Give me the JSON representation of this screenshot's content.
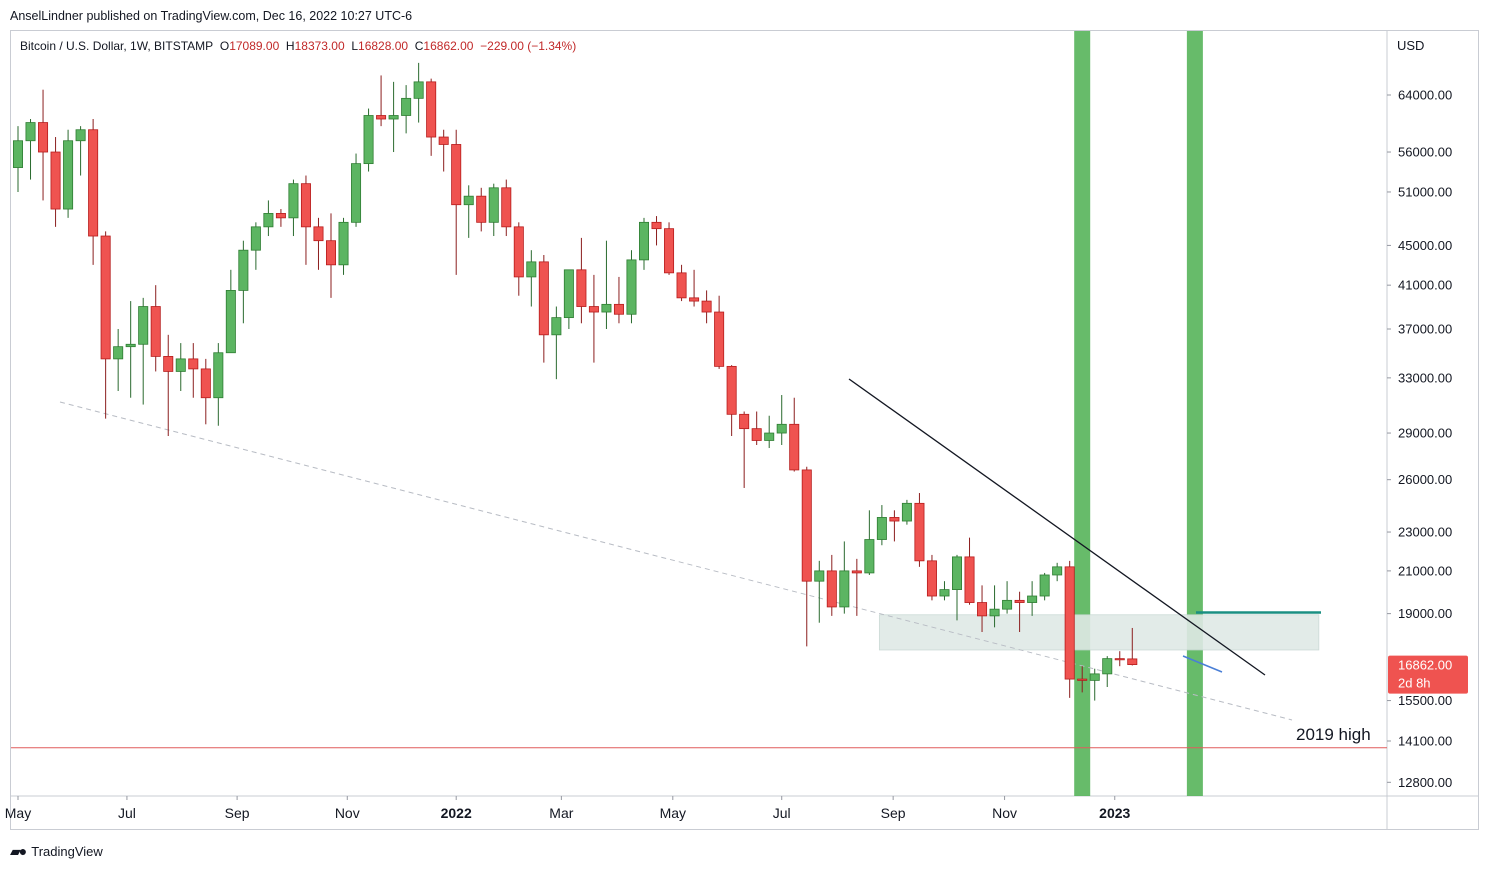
{
  "header": {
    "published": "AnselLindner published on TradingView.com, Dec 16, 2022 10:27 UTC-6"
  },
  "legend": {
    "symbol": "Bitcoin / U.S. Dollar, 1W, BITSTAMP",
    "o_label": "O",
    "o_value": "17089.00",
    "h_label": "H",
    "h_value": "18373.00",
    "l_label": "L",
    "l_value": "16828.00",
    "c_label": "C",
    "c_value": "16862.00",
    "change": "−229.00 (−1.34%)"
  },
  "footer": {
    "brand": "TradingView"
  },
  "colors": {
    "up": "#5cb562",
    "down": "#ef5350",
    "up_border": "#2e7d32",
    "down_border": "#b71c1c",
    "highlight": "#4caf50",
    "zone": "#dfe9e6",
    "support": "#e05c5c",
    "level": "#1a8f82",
    "price_badge": "#ef5350"
  },
  "chart_data": {
    "type": "candlestick",
    "title": "Bitcoin / U.S. Dollar, 1W, BITSTAMP",
    "currency": "USD",
    "scale": "log",
    "ylim": [
      12000,
      78000
    ],
    "y_ticks": [
      "64000.00",
      "56000.00",
      "51000.00",
      "45000.00",
      "41000.00",
      "37000.00",
      "33000.00",
      "29000.00",
      "26000.00",
      "23000.00",
      "21000.00",
      "19000.00",
      "15500.00",
      "14100.00",
      "12800.00"
    ],
    "x_tick_labels": [
      "May",
      "Jul",
      "Sep",
      "Nov",
      "2022",
      "Mar",
      "May",
      "Jul",
      "Sep",
      "Nov",
      "2023"
    ],
    "x_tick_weeks": [
      0,
      8.7,
      17.5,
      26.3,
      35.0,
      43.4,
      52.3,
      61.0,
      69.9,
      78.8,
      87.6
    ],
    "current_price": "16862.00",
    "countdown": "2d 8h",
    "annotation": "2019 high",
    "support_level": 13880,
    "horizontal_level": 19050,
    "support_zone": [
      17450,
      18950
    ],
    "candles": [
      {
        "o": 54000,
        "h": 59500,
        "l": 51000,
        "c": 57500
      },
      {
        "o": 57500,
        "h": 60500,
        "l": 52500,
        "c": 60000
      },
      {
        "o": 60000,
        "h": 64800,
        "l": 50000,
        "c": 56000
      },
      {
        "o": 56000,
        "h": 58000,
        "l": 47000,
        "c": 49000
      },
      {
        "o": 49000,
        "h": 59000,
        "l": 48000,
        "c": 57500
      },
      {
        "o": 57500,
        "h": 59500,
        "l": 53000,
        "c": 59000
      },
      {
        "o": 59000,
        "h": 60500,
        "l": 43000,
        "c": 46000
      },
      {
        "o": 46000,
        "h": 46500,
        "l": 30000,
        "c": 34500
      },
      {
        "o": 34500,
        "h": 37000,
        "l": 32000,
        "c": 35500
      },
      {
        "o": 35500,
        "h": 39500,
        "l": 31500,
        "c": 35700
      },
      {
        "o": 35700,
        "h": 39800,
        "l": 31000,
        "c": 39000
      },
      {
        "o": 39000,
        "h": 41000,
        "l": 33500,
        "c": 34700
      },
      {
        "o": 34700,
        "h": 36500,
        "l": 28800,
        "c": 33500
      },
      {
        "o": 33500,
        "h": 35800,
        "l": 32000,
        "c": 34500
      },
      {
        "o": 34500,
        "h": 35800,
        "l": 31500,
        "c": 33700
      },
      {
        "o": 33700,
        "h": 34500,
        "l": 29600,
        "c": 31500
      },
      {
        "o": 31500,
        "h": 35800,
        "l": 29500,
        "c": 35000
      },
      {
        "o": 35000,
        "h": 42500,
        "l": 35000,
        "c": 40500
      },
      {
        "o": 40500,
        "h": 45500,
        "l": 37500,
        "c": 44500
      },
      {
        "o": 44500,
        "h": 47500,
        "l": 42500,
        "c": 47000
      },
      {
        "o": 47000,
        "h": 50000,
        "l": 46000,
        "c": 48500
      },
      {
        "o": 48500,
        "h": 49000,
        "l": 47000,
        "c": 48000
      },
      {
        "o": 48000,
        "h": 52500,
        "l": 46000,
        "c": 52000
      },
      {
        "o": 52000,
        "h": 53000,
        "l": 43000,
        "c": 47000
      },
      {
        "o": 47000,
        "h": 48000,
        "l": 42500,
        "c": 45500
      },
      {
        "o": 45500,
        "h": 48500,
        "l": 39800,
        "c": 43000
      },
      {
        "o": 43000,
        "h": 48000,
        "l": 42000,
        "c": 47500
      },
      {
        "o": 47500,
        "h": 55800,
        "l": 47000,
        "c": 54500
      },
      {
        "o": 54500,
        "h": 62000,
        "l": 53500,
        "c": 61000
      },
      {
        "o": 61000,
        "h": 67000,
        "l": 59500,
        "c": 60500
      },
      {
        "o": 60500,
        "h": 66000,
        "l": 56000,
        "c": 61000
      },
      {
        "o": 61000,
        "h": 65500,
        "l": 58500,
        "c": 63500
      },
      {
        "o": 63500,
        "h": 69000,
        "l": 60000,
        "c": 66000
      },
      {
        "o": 66000,
        "h": 66500,
        "l": 55500,
        "c": 58000
      },
      {
        "o": 58000,
        "h": 59000,
        "l": 53500,
        "c": 57000
      },
      {
        "o": 57000,
        "h": 59000,
        "l": 42000,
        "c": 49500
      },
      {
        "o": 49500,
        "h": 51800,
        "l": 45800,
        "c": 50500
      },
      {
        "o": 50500,
        "h": 51500,
        "l": 46500,
        "c": 47500
      },
      {
        "o": 47500,
        "h": 52000,
        "l": 46000,
        "c": 51500
      },
      {
        "o": 51500,
        "h": 52500,
        "l": 46000,
        "c": 47000
      },
      {
        "o": 47000,
        "h": 47500,
        "l": 40000,
        "c": 41800
      },
      {
        "o": 41800,
        "h": 44500,
        "l": 39000,
        "c": 43300
      },
      {
        "o": 43300,
        "h": 44000,
        "l": 34200,
        "c": 36500
      },
      {
        "o": 36500,
        "h": 39000,
        "l": 32900,
        "c": 38000
      },
      {
        "o": 38000,
        "h": 42500,
        "l": 37000,
        "c": 42500
      },
      {
        "o": 42500,
        "h": 45800,
        "l": 37500,
        "c": 39000
      },
      {
        "o": 39000,
        "h": 42000,
        "l": 34200,
        "c": 38500
      },
      {
        "o": 38500,
        "h": 45500,
        "l": 37000,
        "c": 39200
      },
      {
        "o": 39200,
        "h": 41800,
        "l": 37500,
        "c": 38300
      },
      {
        "o": 38300,
        "h": 44500,
        "l": 37500,
        "c": 43500
      },
      {
        "o": 43500,
        "h": 48000,
        "l": 42500,
        "c": 47500
      },
      {
        "o": 47500,
        "h": 48200,
        "l": 45000,
        "c": 46800
      },
      {
        "o": 46800,
        "h": 47500,
        "l": 42000,
        "c": 42200
      },
      {
        "o": 42200,
        "h": 43000,
        "l": 39500,
        "c": 39800
      },
      {
        "o": 39800,
        "h": 42500,
        "l": 39000,
        "c": 39500
      },
      {
        "o": 39500,
        "h": 40500,
        "l": 37500,
        "c": 38500
      },
      {
        "o": 38500,
        "h": 40000,
        "l": 33700,
        "c": 33900
      },
      {
        "o": 33900,
        "h": 34000,
        "l": 28800,
        "c": 30300
      },
      {
        "o": 30300,
        "h": 30500,
        "l": 25500,
        "c": 29300
      },
      {
        "o": 29300,
        "h": 30500,
        "l": 28200,
        "c": 28500
      },
      {
        "o": 28500,
        "h": 30200,
        "l": 28000,
        "c": 29000
      },
      {
        "o": 29000,
        "h": 31700,
        "l": 28200,
        "c": 29600
      },
      {
        "o": 29600,
        "h": 31500,
        "l": 26500,
        "c": 26600
      },
      {
        "o": 26600,
        "h": 26800,
        "l": 17600,
        "c": 20500
      },
      {
        "o": 20500,
        "h": 21500,
        "l": 18600,
        "c": 21000
      },
      {
        "o": 21000,
        "h": 21800,
        "l": 18900,
        "c": 19300
      },
      {
        "o": 19300,
        "h": 22500,
        "l": 19000,
        "c": 21000
      },
      {
        "o": 21000,
        "h": 21600,
        "l": 18900,
        "c": 20900
      },
      {
        "o": 20900,
        "h": 24200,
        "l": 20800,
        "c": 22600
      },
      {
        "o": 22600,
        "h": 24500,
        "l": 22300,
        "c": 23800
      },
      {
        "o": 23800,
        "h": 24200,
        "l": 22500,
        "c": 23600
      },
      {
        "o": 23600,
        "h": 24800,
        "l": 23400,
        "c": 24600
      },
      {
        "o": 24600,
        "h": 25200,
        "l": 21200,
        "c": 21500
      },
      {
        "o": 21500,
        "h": 21800,
        "l": 19600,
        "c": 19800
      },
      {
        "o": 19800,
        "h": 20500,
        "l": 19600,
        "c": 20100
      },
      {
        "o": 20100,
        "h": 21800,
        "l": 18700,
        "c": 21700
      },
      {
        "o": 21700,
        "h": 22700,
        "l": 19400,
        "c": 19500
      },
      {
        "o": 19500,
        "h": 20300,
        "l": 18200,
        "c": 18900
      },
      {
        "o": 18900,
        "h": 20300,
        "l": 18400,
        "c": 19200
      },
      {
        "o": 19200,
        "h": 20500,
        "l": 19000,
        "c": 19600
      },
      {
        "o": 19600,
        "h": 20000,
        "l": 18200,
        "c": 19500
      },
      {
        "o": 19500,
        "h": 20500,
        "l": 18900,
        "c": 19800
      },
      {
        "o": 19800,
        "h": 20900,
        "l": 19600,
        "c": 20800
      },
      {
        "o": 20800,
        "h": 21400,
        "l": 20500,
        "c": 21200
      },
      {
        "o": 21200,
        "h": 21500,
        "l": 15600,
        "c": 16300
      },
      {
        "o": 16300,
        "h": 16800,
        "l": 15800,
        "c": 16250
      },
      {
        "o": 16250,
        "h": 16700,
        "l": 15500,
        "c": 16500
      },
      {
        "o": 16500,
        "h": 17200,
        "l": 16000,
        "c": 17100
      },
      {
        "o": 17100,
        "h": 17400,
        "l": 16800,
        "c": 17090
      },
      {
        "o": 17089,
        "h": 18373,
        "l": 16828,
        "c": 16862
      }
    ]
  }
}
